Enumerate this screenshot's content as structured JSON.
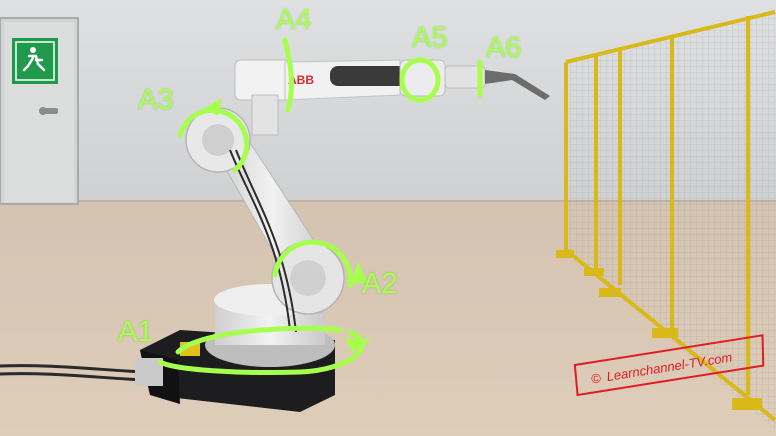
{
  "scene": {
    "robot_brand": "ABB",
    "colors": {
      "wall": "#d8d9da",
      "floor": "#d6c6b3",
      "robot_body": "#e6e6e6",
      "robot_base": "#1d1d1f",
      "axis_marks": "#a6ff4d",
      "fence_frame": "#e2c21f",
      "fence_mesh": "#b7b7b7",
      "exit_sign": "#1f9a4c",
      "watermark": "#e31b23"
    }
  },
  "axis_labels": {
    "a1": "A1",
    "a2": "A2",
    "a3": "A3",
    "a4": "A4",
    "a5": "A5",
    "a6": "A6"
  },
  "watermark": {
    "symbol": "©",
    "text": "Learnchannel-TV.com"
  }
}
